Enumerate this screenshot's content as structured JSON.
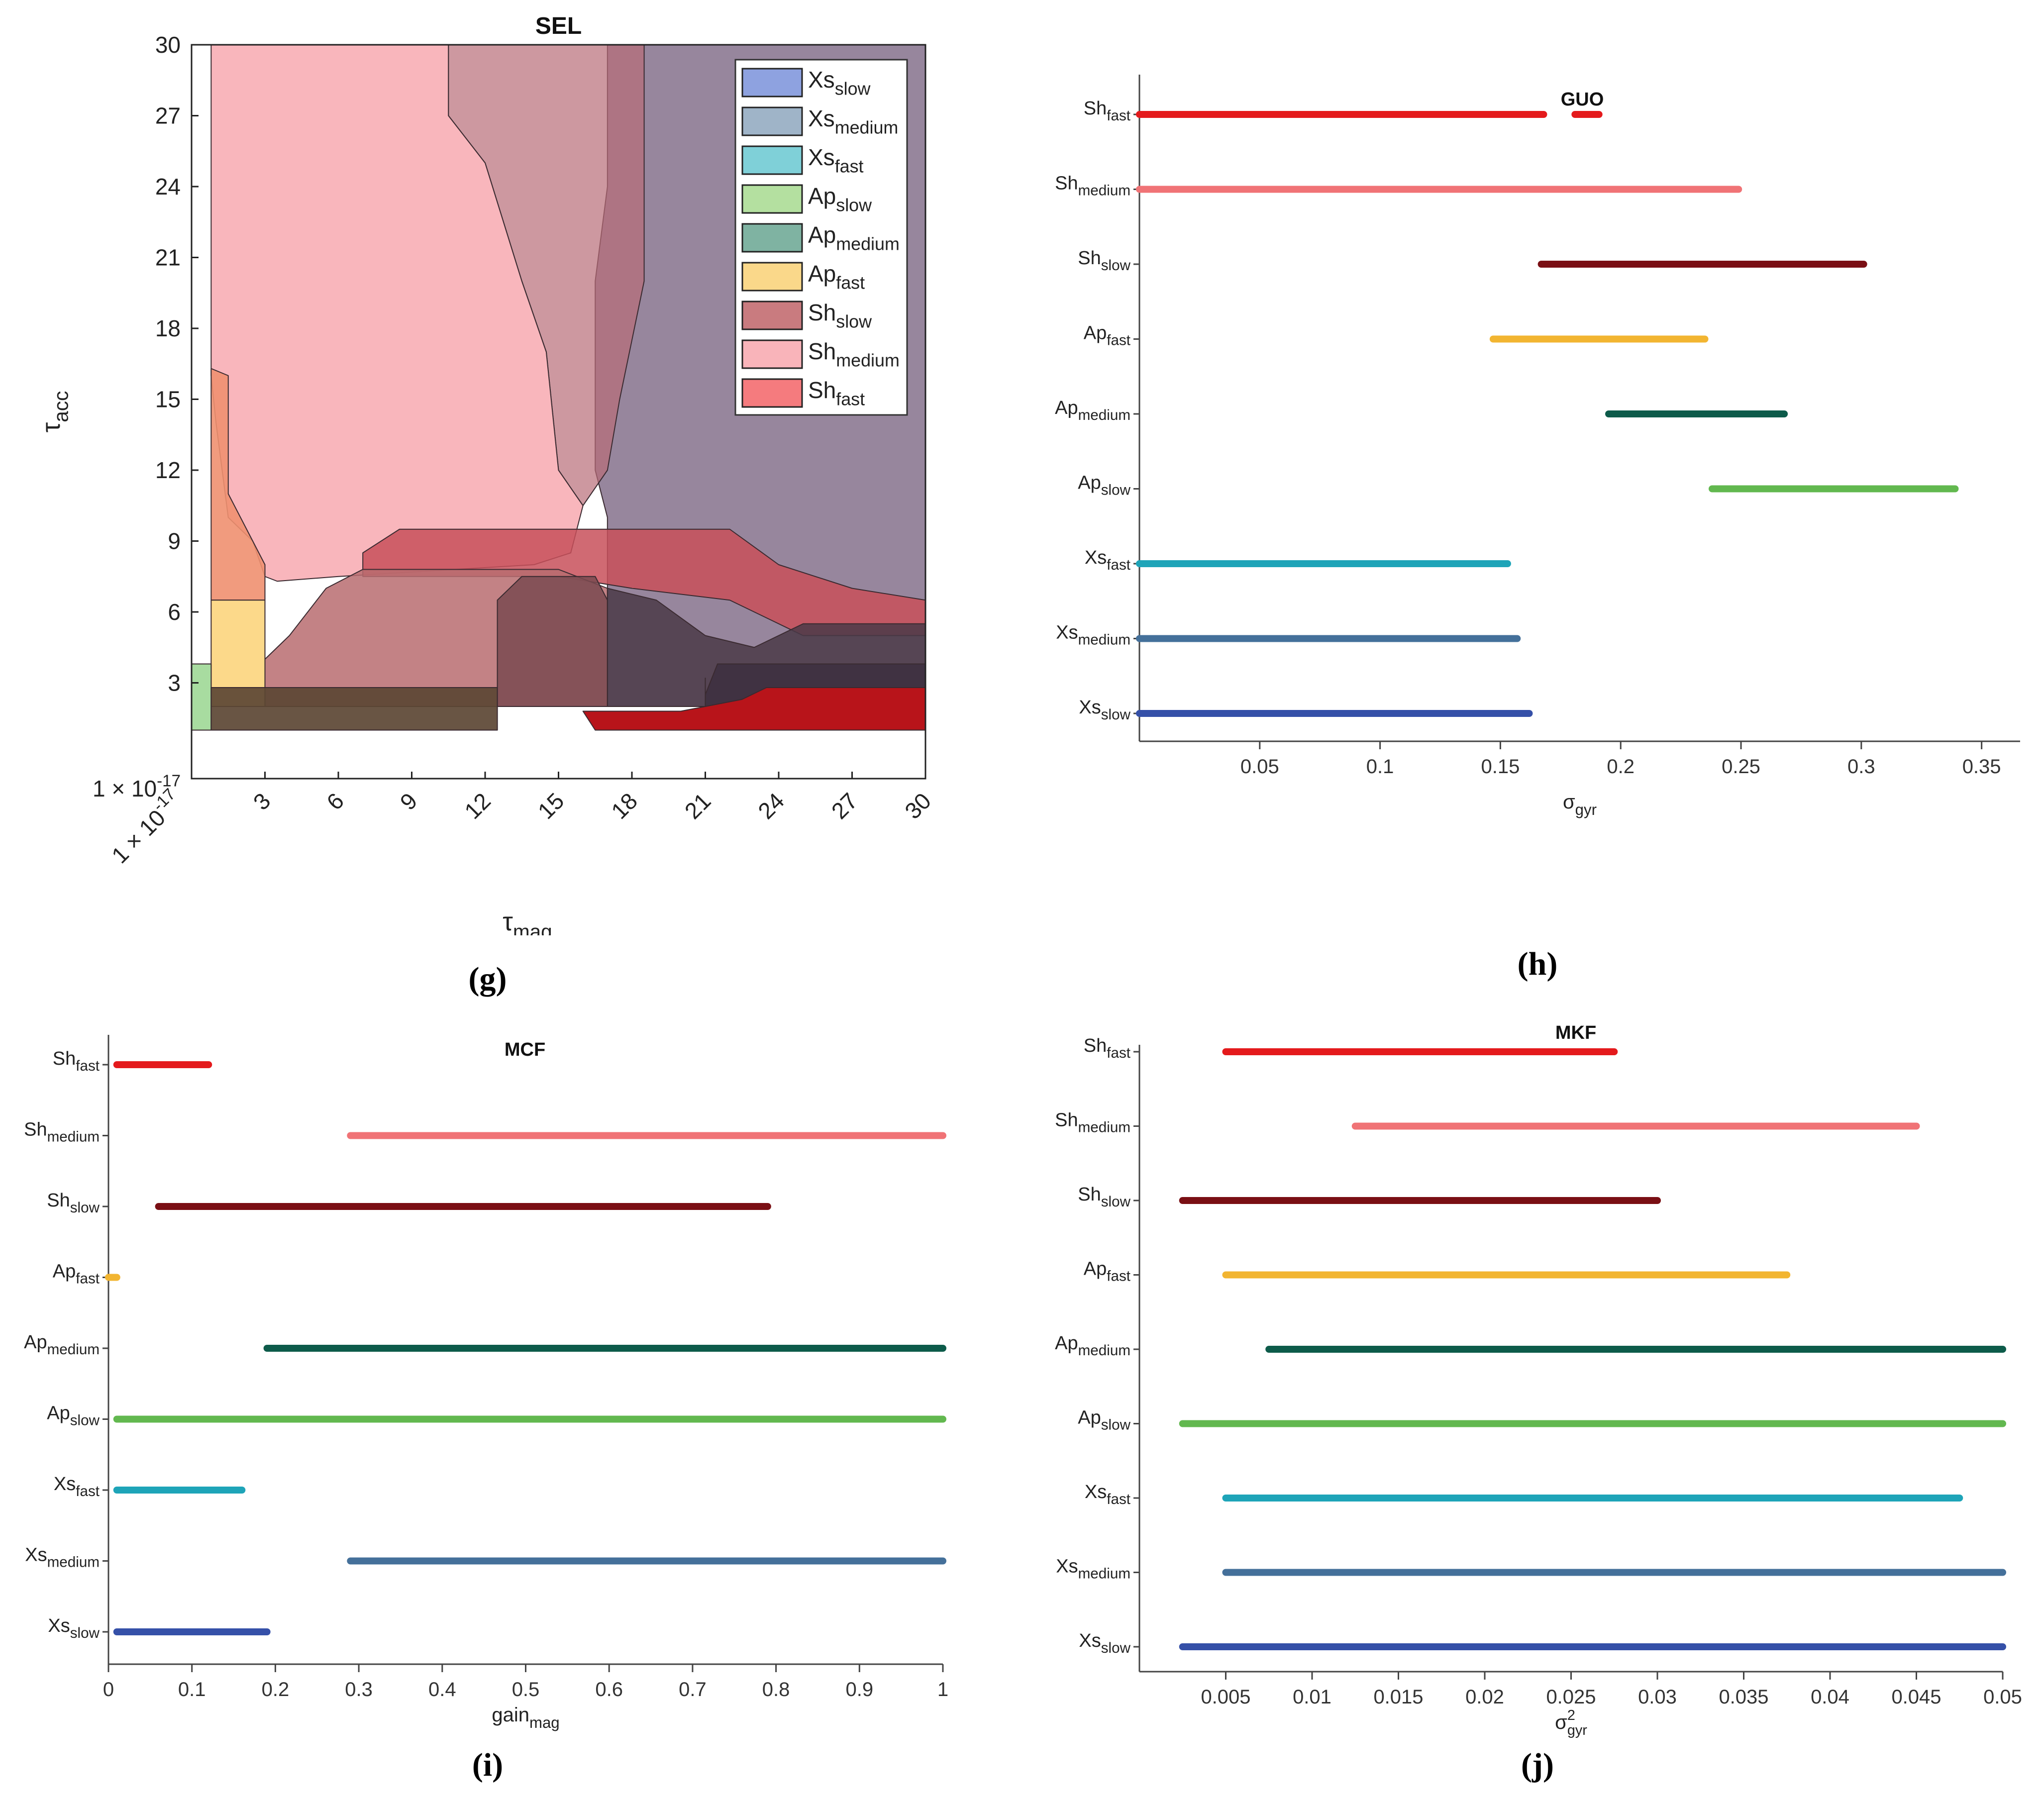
{
  "series_colors": {
    "Xs_slow": "#3550a8",
    "Xs_medium": "#44709a",
    "Xs_fast": "#1ea4b8",
    "Ap_slow": "#62b84f",
    "Ap_medium": "#0d5b4a",
    "Ap_fast": "#f2b531",
    "Sh_slow": "#7a0f14",
    "Sh_medium": "#f07376",
    "Sh_fast": "#e41a1c"
  },
  "captions": {
    "g": "(g)",
    "h": "(h)",
    "i": "(i)",
    "j": "(j)"
  },
  "chart_data": [
    {
      "id": "g",
      "type": "area",
      "title": "SEL",
      "xlabel": "τ",
      "xlabel_sub": "mag",
      "ylabel": "τ",
      "ylabel_sub": "acc",
      "xlim": [
        0,
        30
      ],
      "ylim": [
        0,
        30
      ],
      "x_ticks": [
        {
          "v": 0,
          "label": "1 × 10",
          "sup": "-17"
        },
        {
          "v": 3,
          "label": "3"
        },
        {
          "v": 6,
          "label": "6"
        },
        {
          "v": 9,
          "label": "9"
        },
        {
          "v": 12,
          "label": "12"
        },
        {
          "v": 15,
          "label": "15"
        },
        {
          "v": 18,
          "label": "18"
        },
        {
          "v": 21,
          "label": "21"
        },
        {
          "v": 24,
          "label": "24"
        },
        {
          "v": 27,
          "label": "27"
        },
        {
          "v": 30,
          "label": "30"
        }
      ],
      "y_ticks": [
        {
          "v": 0,
          "label": "1 × 10",
          "sup": "-17"
        },
        {
          "v": 3,
          "label": "3"
        },
        {
          "v": 6,
          "label": "6"
        },
        {
          "v": 9,
          "label": "9"
        },
        {
          "v": 12,
          "label": "12"
        },
        {
          "v": 15,
          "label": "15"
        },
        {
          "v": 18,
          "label": "18"
        },
        {
          "v": 21,
          "label": "21"
        },
        {
          "v": 24,
          "label": "24"
        },
        {
          "v": 27,
          "label": "27"
        },
        {
          "v": 30,
          "label": "30"
        }
      ],
      "legend_position": "top-right",
      "legend": [
        {
          "base": "Xs",
          "sub": "slow",
          "color": "#8ea2e0"
        },
        {
          "base": "Xs",
          "sub": "medium",
          "color": "#9fb4c8"
        },
        {
          "base": "Xs",
          "sub": "fast",
          "color": "#7fd0d8"
        },
        {
          "base": "Ap",
          "sub": "slow",
          "color": "#b4e0a0"
        },
        {
          "base": "Ap",
          "sub": "medium",
          "color": "#7fb3a2"
        },
        {
          "base": "Ap",
          "sub": "fast",
          "color": "#fad88a"
        },
        {
          "base": "Sh",
          "sub": "slow",
          "color": "#c97b7f"
        },
        {
          "base": "Sh",
          "sub": "medium",
          "color": "#f9b4ba"
        },
        {
          "base": "Sh",
          "sub": "fast",
          "color": "#f57b7e"
        }
      ],
      "regions": [
        {
          "name": "Xs_medium",
          "fill": "#7a6482",
          "opacity": 0.78,
          "points": [
            [
              17,
              30
            ],
            [
              30,
              30
            ],
            [
              30,
              2
            ],
            [
              17,
              2
            ],
            [
              17,
              10
            ],
            [
              16.5,
              12
            ],
            [
              16.5,
              20
            ],
            [
              17,
              24
            ]
          ]
        },
        {
          "name": "Sh_slow",
          "fill": "#b86c78",
          "opacity": 0.7,
          "points": [
            [
              10.5,
              30
            ],
            [
              18.5,
              30
            ],
            [
              18.5,
              20
            ],
            [
              17.5,
              15
            ],
            [
              17,
              12
            ],
            [
              16,
              10.5
            ],
            [
              15,
              12
            ],
            [
              14.5,
              17
            ],
            [
              13.5,
              20
            ],
            [
              12,
              25
            ],
            [
              10.5,
              27
            ]
          ]
        },
        {
          "name": "Sh_medium",
          "fill": "#f9b0b6",
          "opacity": 0.92,
          "points": [
            [
              0.8,
              30
            ],
            [
              10.5,
              30
            ],
            [
              10.5,
              27
            ],
            [
              12,
              25
            ],
            [
              13.5,
              20
            ],
            [
              14.5,
              17
            ],
            [
              15,
              12
            ],
            [
              16,
              10.5
            ],
            [
              15.5,
              8.5
            ],
            [
              14,
              8
            ],
            [
              6,
              7.5
            ],
            [
              3.5,
              7.3
            ],
            [
              3,
              7.5
            ],
            [
              2.5,
              9
            ],
            [
              1.5,
              10
            ],
            [
              1,
              14
            ],
            [
              0.8,
              16
            ]
          ]
        },
        {
          "name": "Ap_fast_orange",
          "fill": "#f09070",
          "opacity": 0.9,
          "points": [
            [
              0.8,
              16.3
            ],
            [
              1.5,
              16
            ],
            [
              1.5,
              11
            ],
            [
              2.5,
              9
            ],
            [
              3,
              8
            ],
            [
              3,
              6.5
            ],
            [
              0.8,
              6.5
            ]
          ]
        },
        {
          "name": "Sh_fast_band",
          "fill": "#c8505a",
          "opacity": 0.85,
          "points": [
            [
              7,
              8.5
            ],
            [
              8.5,
              9.5
            ],
            [
              22,
              9.5
            ],
            [
              24,
              8
            ],
            [
              27,
              7
            ],
            [
              30,
              6.5
            ],
            [
              30,
              5
            ],
            [
              25,
              5
            ],
            [
              22,
              6.5
            ],
            [
              18,
              7
            ],
            [
              15,
              7.5
            ],
            [
              7,
              7.5
            ]
          ]
        },
        {
          "name": "Sh_slow_low",
          "fill": "#b86c70",
          "opacity": 0.85,
          "points": [
            [
              2,
              2
            ],
            [
              3,
              4
            ],
            [
              4,
              5
            ],
            [
              5.5,
              7
            ],
            [
              7,
              7.8
            ],
            [
              15,
              7.8
            ],
            [
              17,
              7
            ],
            [
              17,
              2
            ]
          ]
        },
        {
          "name": "Ap_fast_yellow",
          "fill": "#fcd98a",
          "opacity": 1,
          "points": [
            [
              0.8,
              6.5
            ],
            [
              3,
              6.5
            ],
            [
              3,
              2
            ],
            [
              0.8,
              2
            ]
          ]
        },
        {
          "name": "Ap_slow_green",
          "fill": "#a8dca0",
          "opacity": 1,
          "points": [
            [
              0,
              3.8
            ],
            [
              0.8,
              3.8
            ],
            [
              0.8,
              1
            ],
            [
              0,
              1
            ]
          ]
        },
        {
          "name": "Ap_medium_dark",
          "fill": "#7a4a50",
          "opacity": 0.85,
          "points": [
            [
              12.5,
              2
            ],
            [
              12.5,
              6.5
            ],
            [
              13.5,
              7.5
            ],
            [
              16.5,
              7.5
            ],
            [
              17,
              6.5
            ],
            [
              17,
              2
            ]
          ]
        },
        {
          "name": "Xs_slow_dark",
          "fill": "#4a3a48",
          "opacity": 0.85,
          "points": [
            [
              17,
              2
            ],
            [
              17,
              7
            ],
            [
              19,
              6.5
            ],
            [
              21,
              5
            ],
            [
              23,
              4.5
            ],
            [
              25,
              5.5
            ],
            [
              30,
              5.5
            ],
            [
              30,
              2
            ]
          ]
        },
        {
          "name": "base_dark",
          "fill": "#5c4634",
          "opacity": 0.92,
          "points": [
            [
              0.8,
              2.8
            ],
            [
              12.5,
              2.8
            ],
            [
              12.5,
              1
            ],
            [
              0.8,
              1
            ]
          ]
        },
        {
          "name": "Xs_fast_dark",
          "fill": "#3e3040",
          "opacity": 0.9,
          "points": [
            [
              21,
              3.2
            ],
            [
              21,
              2.5
            ],
            [
              21.5,
              3.8
            ],
            [
              30,
              3.8
            ],
            [
              30,
              1
            ],
            [
              21,
              1
            ]
          ]
        },
        {
          "name": "Sh_fast_red",
          "fill": "#b8141a",
          "opacity": 1,
          "points": [
            [
              16,
              1.8
            ],
            [
              16.5,
              1
            ],
            [
              30,
              1
            ],
            [
              30,
              2.8
            ],
            [
              23.5,
              2.8
            ],
            [
              22.5,
              2.3
            ],
            [
              20,
              1.8
            ]
          ]
        }
      ]
    },
    {
      "id": "h",
      "type": "range",
      "title": "GUO",
      "xlabel": "σ",
      "xlabel_sub": "gyr",
      "xlim": [
        0,
        0.366
      ],
      "x_ticks": [
        "0.05",
        "0.1",
        "0.15",
        "0.2",
        "0.25",
        "0.3",
        "0.35"
      ],
      "categories": [
        {
          "base": "Sh",
          "sub": "fast",
          "key": "Sh_fast",
          "segments": [
            [
              0,
              0.168
            ],
            [
              0.181,
              0.191
            ]
          ]
        },
        {
          "base": "Sh",
          "sub": "medium",
          "key": "Sh_medium",
          "segments": [
            [
              0,
              0.249
            ]
          ]
        },
        {
          "base": "Sh",
          "sub": "slow",
          "key": "Sh_slow",
          "segments": [
            [
              0.167,
              0.301
            ]
          ]
        },
        {
          "base": "Ap",
          "sub": "fast",
          "key": "Ap_fast",
          "segments": [
            [
              0.147,
              0.235
            ]
          ]
        },
        {
          "base": "Ap",
          "sub": "medium",
          "key": "Ap_medium",
          "segments": [
            [
              0.195,
              0.268
            ]
          ]
        },
        {
          "base": "Ap",
          "sub": "slow",
          "key": "Ap_slow",
          "segments": [
            [
              0.238,
              0.339
            ]
          ]
        },
        {
          "base": "Xs",
          "sub": "fast",
          "key": "Xs_fast",
          "segments": [
            [
              0,
              0.153
            ]
          ]
        },
        {
          "base": "Xs",
          "sub": "medium",
          "key": "Xs_medium",
          "segments": [
            [
              0,
              0.157
            ]
          ]
        },
        {
          "base": "Xs",
          "sub": "slow",
          "key": "Xs_slow",
          "segments": [
            [
              0,
              0.162
            ]
          ]
        }
      ]
    },
    {
      "id": "i",
      "type": "range",
      "title": "MCF",
      "xlabel": "gain",
      "xlabel_sub": "mag",
      "xlim": [
        0,
        1
      ],
      "x_ticks": [
        "0",
        "0.1",
        "0.2",
        "0.3",
        "0.4",
        "0.5",
        "0.6",
        "0.7",
        "0.8",
        "0.9",
        "1"
      ],
      "categories": [
        {
          "base": "Sh",
          "sub": "fast",
          "key": "Sh_fast",
          "segments": [
            [
              0.01,
              0.12
            ]
          ]
        },
        {
          "base": "Sh",
          "sub": "medium",
          "key": "Sh_medium",
          "segments": [
            [
              0.29,
              1
            ]
          ]
        },
        {
          "base": "Sh",
          "sub": "slow",
          "key": "Sh_slow",
          "segments": [
            [
              0.06,
              0.79
            ]
          ]
        },
        {
          "base": "Ap",
          "sub": "fast",
          "key": "Ap_fast",
          "segments": [
            [
              0,
              0.01
            ]
          ]
        },
        {
          "base": "Ap",
          "sub": "medium",
          "key": "Ap_medium",
          "segments": [
            [
              0.19,
              1
            ]
          ]
        },
        {
          "base": "Ap",
          "sub": "slow",
          "key": "Ap_slow",
          "segments": [
            [
              0.01,
              1
            ]
          ]
        },
        {
          "base": "Xs",
          "sub": "fast",
          "key": "Xs_fast",
          "segments": [
            [
              0.01,
              0.16
            ]
          ]
        },
        {
          "base": "Xs",
          "sub": "medium",
          "key": "Xs_medium",
          "segments": [
            [
              0.29,
              1
            ]
          ]
        },
        {
          "base": "Xs",
          "sub": "slow",
          "key": "Xs_slow",
          "segments": [
            [
              0.01,
              0.19
            ]
          ]
        }
      ]
    },
    {
      "id": "j",
      "type": "range",
      "title": "MKF",
      "xlabel": "σ",
      "xlabel_sup": "2",
      "xlabel_sub": "gyr",
      "xlim": [
        0,
        0.05
      ],
      "x_ticks": [
        "0.005",
        "0.01",
        "0.015",
        "0.02",
        "0.025",
        "0.03",
        "0.035",
        "0.04",
        "0.045",
        "0.05"
      ],
      "categories": [
        {
          "base": "Sh",
          "sub": "fast",
          "key": "Sh_fast",
          "segments": [
            [
              0.005,
              0.0275
            ]
          ]
        },
        {
          "base": "Sh",
          "sub": "medium",
          "key": "Sh_medium",
          "segments": [
            [
              0.0125,
              0.045
            ]
          ]
        },
        {
          "base": "Sh",
          "sub": "slow",
          "key": "Sh_slow",
          "segments": [
            [
              0.0025,
              0.03
            ]
          ]
        },
        {
          "base": "Ap",
          "sub": "fast",
          "key": "Ap_fast",
          "segments": [
            [
              0.005,
              0.0375
            ]
          ]
        },
        {
          "base": "Ap",
          "sub": "medium",
          "key": "Ap_medium",
          "segments": [
            [
              0.0075,
              0.05
            ]
          ]
        },
        {
          "base": "Ap",
          "sub": "slow",
          "key": "Ap_slow",
          "segments": [
            [
              0.0025,
              0.05
            ]
          ]
        },
        {
          "base": "Xs",
          "sub": "fast",
          "key": "Xs_fast",
          "segments": [
            [
              0.005,
              0.0475
            ]
          ]
        },
        {
          "base": "Xs",
          "sub": "medium",
          "key": "Xs_medium",
          "segments": [
            [
              0.005,
              0.05
            ]
          ]
        },
        {
          "base": "Xs",
          "sub": "slow",
          "key": "Xs_slow",
          "segments": [
            [
              0.0025,
              0.05
            ]
          ]
        }
      ]
    }
  ]
}
